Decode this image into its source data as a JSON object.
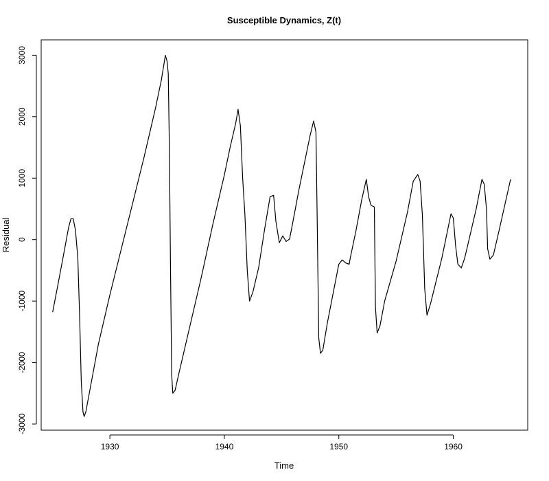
{
  "chart_data": {
    "type": "line",
    "title": "Susceptible Dynamics, Z(t)",
    "xlabel": "Time",
    "ylabel": "Residual",
    "xlim": [
      1924.0,
      1966.5
    ],
    "ylim": [
      -3100,
      3250
    ],
    "xticks": [
      1930,
      1940,
      1950,
      1960
    ],
    "yticks": [
      -3000,
      -2000,
      -1000,
      0,
      1000,
      2000,
      3000
    ],
    "grid": false,
    "color": "#000000",
    "series": [
      {
        "points": [
          [
            1925.0,
            -1180
          ],
          [
            1925.5,
            -700
          ],
          [
            1926.0,
            -200
          ],
          [
            1926.4,
            200
          ],
          [
            1926.6,
            340
          ],
          [
            1926.8,
            340
          ],
          [
            1927.0,
            150
          ],
          [
            1927.2,
            -300
          ],
          [
            1927.35,
            -1200
          ],
          [
            1927.5,
            -2300
          ],
          [
            1927.65,
            -2800
          ],
          [
            1927.75,
            -2880
          ],
          [
            1927.9,
            -2800
          ],
          [
            1928.2,
            -2500
          ],
          [
            1929.0,
            -1700
          ],
          [
            1930.0,
            -900
          ],
          [
            1931.0,
            -150
          ],
          [
            1932.0,
            600
          ],
          [
            1933.0,
            1350
          ],
          [
            1934.0,
            2150
          ],
          [
            1934.5,
            2600
          ],
          [
            1934.85,
            3000
          ],
          [
            1935.0,
            2900
          ],
          [
            1935.1,
            2700
          ],
          [
            1935.2,
            1500
          ],
          [
            1935.3,
            -500
          ],
          [
            1935.4,
            -2200
          ],
          [
            1935.5,
            -2500
          ],
          [
            1935.7,
            -2450
          ],
          [
            1936.0,
            -2200
          ],
          [
            1937.0,
            -1400
          ],
          [
            1938.0,
            -600
          ],
          [
            1939.0,
            250
          ],
          [
            1940.0,
            1050
          ],
          [
            1940.5,
            1500
          ],
          [
            1941.0,
            1900
          ],
          [
            1941.2,
            2120
          ],
          [
            1941.4,
            1850
          ],
          [
            1941.6,
            1000
          ],
          [
            1941.8,
            400
          ],
          [
            1942.0,
            -500
          ],
          [
            1942.2,
            -1000
          ],
          [
            1942.5,
            -850
          ],
          [
            1943.0,
            -450
          ],
          [
            1943.5,
            150
          ],
          [
            1944.0,
            700
          ],
          [
            1944.3,
            720
          ],
          [
            1944.5,
            300
          ],
          [
            1944.8,
            -50
          ],
          [
            1945.1,
            60
          ],
          [
            1945.4,
            -30
          ],
          [
            1945.7,
            10
          ],
          [
            1946.0,
            300
          ],
          [
            1946.5,
            800
          ],
          [
            1947.0,
            1250
          ],
          [
            1947.5,
            1700
          ],
          [
            1947.8,
            1930
          ],
          [
            1948.0,
            1750
          ],
          [
            1948.1,
            500
          ],
          [
            1948.25,
            -1600
          ],
          [
            1948.4,
            -1850
          ],
          [
            1948.6,
            -1800
          ],
          [
            1949.0,
            -1350
          ],
          [
            1950.0,
            -400
          ],
          [
            1950.3,
            -330
          ],
          [
            1950.6,
            -380
          ],
          [
            1950.9,
            -400
          ],
          [
            1951.0,
            -300
          ],
          [
            1951.5,
            150
          ],
          [
            1952.0,
            650
          ],
          [
            1952.4,
            980
          ],
          [
            1952.6,
            700
          ],
          [
            1952.8,
            560
          ],
          [
            1953.0,
            540
          ],
          [
            1953.1,
            530
          ],
          [
            1953.2,
            -1100
          ],
          [
            1953.35,
            -1520
          ],
          [
            1953.6,
            -1400
          ],
          [
            1954.0,
            -1000
          ],
          [
            1955.0,
            -350
          ],
          [
            1956.0,
            450
          ],
          [
            1956.5,
            950
          ],
          [
            1956.9,
            1060
          ],
          [
            1957.1,
            950
          ],
          [
            1957.3,
            400
          ],
          [
            1957.5,
            -800
          ],
          [
            1957.7,
            -1230
          ],
          [
            1958.0,
            -1050
          ],
          [
            1959.0,
            -300
          ],
          [
            1959.8,
            420
          ],
          [
            1960.0,
            350
          ],
          [
            1960.2,
            -100
          ],
          [
            1960.4,
            -400
          ],
          [
            1960.7,
            -460
          ],
          [
            1961.0,
            -300
          ],
          [
            1962.0,
            500
          ],
          [
            1962.5,
            980
          ],
          [
            1962.7,
            900
          ],
          [
            1962.9,
            500
          ],
          [
            1963.0,
            -150
          ],
          [
            1963.2,
            -320
          ],
          [
            1963.5,
            -250
          ],
          [
            1964.0,
            150
          ],
          [
            1965.0,
            980
          ]
        ]
      }
    ]
  }
}
